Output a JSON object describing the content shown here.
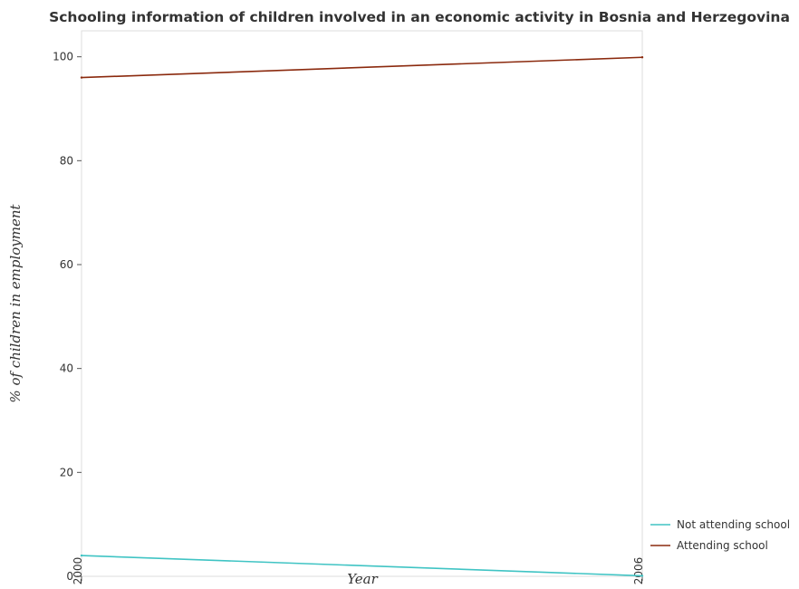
{
  "chart_data": {
    "type": "line",
    "title": "Schooling information of children involved in an economic activity in Bosnia and Herzegovina",
    "xlabel": "Year",
    "ylabel": "% of children in employment",
    "x": [
      "2000",
      "2006"
    ],
    "ylim": [
      0,
      105
    ],
    "yticks": [
      "0",
      "20",
      "40",
      "60",
      "80",
      "100"
    ],
    "series": [
      {
        "name": "Not attending school",
        "values": [
          4.0,
          0.1
        ],
        "color": "#40c4c4"
      },
      {
        "name": "Attending school",
        "values": [
          96.0,
          99.9
        ],
        "color": "#8b2a0e"
      }
    ],
    "grid": false,
    "legend_position": "bottom-right"
  }
}
